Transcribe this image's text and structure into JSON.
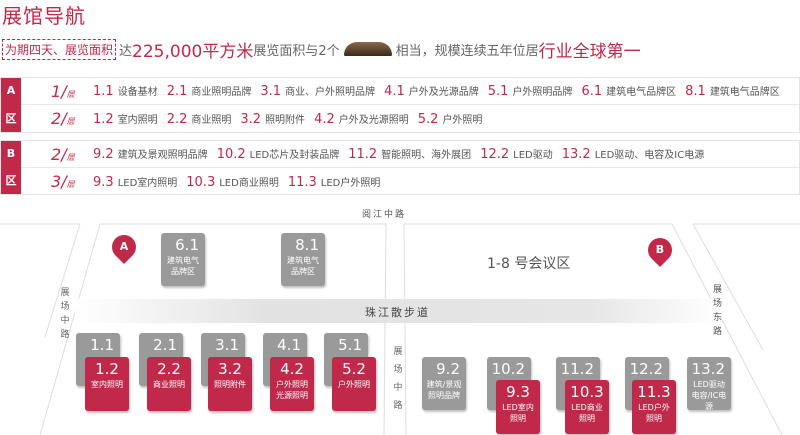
{
  "title": "展馆导航",
  "intro": {
    "tag": "为期四天、展览面积",
    "t1": "达",
    "area": "225,000平方米",
    "t2": "展览面积与2个",
    "t3": "相当，规模连续五年位居",
    "rank": "行业全球第一"
  },
  "zone_a": {
    "side": [
      "A",
      "区"
    ],
    "rows": [
      {
        "floor": "1",
        "unit": "层",
        "items": [
          {
            "n": "1.1",
            "t": "设备基材"
          },
          {
            "n": "2.1",
            "t": "商业照明品牌"
          },
          {
            "n": "3.1",
            "t": "商业、户外照明品牌"
          },
          {
            "n": "4.1",
            "t": "户外及光源品牌"
          },
          {
            "n": "5.1",
            "t": "户外照明品牌"
          },
          {
            "n": "6.1",
            "t": "建筑电气品牌区"
          },
          {
            "n": "8.1",
            "t": "建筑电气品牌区"
          }
        ]
      },
      {
        "floor": "2",
        "unit": "层",
        "items": [
          {
            "n": "1.2",
            "t": "室内照明"
          },
          {
            "n": "2.2",
            "t": "商业照明"
          },
          {
            "n": "3.2",
            "t": "照明附件"
          },
          {
            "n": "4.2",
            "t": "户外及光源照明"
          },
          {
            "n": "5.2",
            "t": "户外照明"
          }
        ]
      }
    ]
  },
  "zone_b": {
    "side": [
      "B",
      "区"
    ],
    "rows": [
      {
        "floor": "2",
        "unit": "层",
        "items": [
          {
            "n": "9.2",
            "t": "建筑及景观照明品牌"
          },
          {
            "n": "10.2",
            "t": "LED芯片及封装品牌"
          },
          {
            "n": "11.2",
            "t": "智能照明、海外展团"
          },
          {
            "n": "12.2",
            "t": "LED驱动"
          },
          {
            "n": "13.2",
            "t": "LED驱动、电容及IC电源"
          }
        ]
      },
      {
        "floor": "3",
        "unit": "层",
        "items": [
          {
            "n": "9.3",
            "t": "LED室内照明"
          },
          {
            "n": "10.3",
            "t": "LED商业照明"
          },
          {
            "n": "11.3",
            "t": "LED户外照明"
          }
        ]
      }
    ]
  },
  "map": {
    "road_top": "阅江中路",
    "walkway": "珠江散步道",
    "road_left": "展场中路",
    "road_mid": "展场中路",
    "road_east": "展场东路",
    "meeting": "1-8 号会议区",
    "pin_a": "A",
    "pin_b": "B",
    "boxes": {
      "b61": {
        "n": "6.1",
        "t": "建筑电气品牌区"
      },
      "b81": {
        "n": "8.1",
        "t": "建筑电气品牌区"
      },
      "b11": {
        "n": "1.1"
      },
      "b21": {
        "n": "2.1"
      },
      "b31": {
        "n": "3.1"
      },
      "b41": {
        "n": "4.1"
      },
      "b51": {
        "n": "5.1"
      },
      "b12": {
        "n": "1.2",
        "t": "室内照明"
      },
      "b22": {
        "n": "2.2",
        "t": "商业照明"
      },
      "b32": {
        "n": "3.2",
        "t": "照明附件"
      },
      "b42": {
        "n": "4.2",
        "t": "户外照明光源照明"
      },
      "b52": {
        "n": "5.2",
        "t": "户外照明"
      },
      "b92": {
        "n": "9.2",
        "t": "建筑/景观照明品牌"
      },
      "b102": {
        "n": "10.2"
      },
      "b112": {
        "n": "11.2"
      },
      "b122": {
        "n": "12.2"
      },
      "b132": {
        "n": "13.2",
        "t": "LED驱动电容/IC电源"
      },
      "b93": {
        "n": "9.3",
        "t": "LED室内照明"
      },
      "b103": {
        "n": "10.3",
        "t": "LED商业照明"
      },
      "b113": {
        "n": "11.3",
        "t": "LED户外照明"
      }
    },
    "colors": {
      "accent": "#c0294a",
      "gray": "#9a9a9a"
    }
  }
}
